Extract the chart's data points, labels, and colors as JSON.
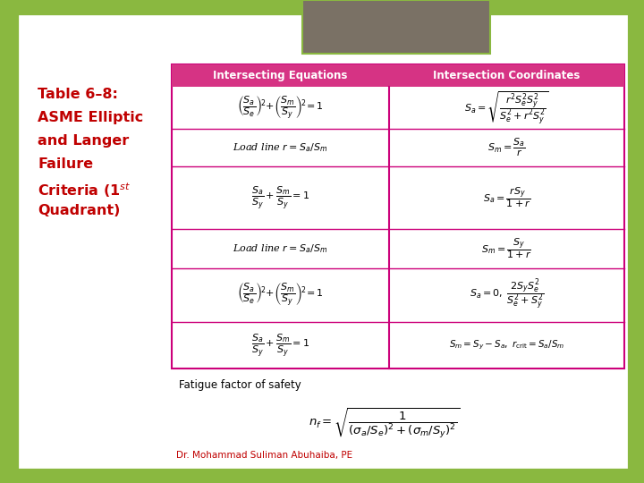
{
  "bg_color": "#8ab840",
  "slide_bg": "#ffffff",
  "header_color": "#d63384",
  "header_text_color": "#ffffff",
  "title_text_color": "#c00000",
  "col1_header": "Intersecting Equations",
  "col2_header": "Intersection Coordinates",
  "footer_text": "Dr. Mohammad Suliman Abuhaiba, PE",
  "fatigue_label": "Fatigue factor of safety",
  "gray_box_color": "#7a7165",
  "table_line_color": "#cc007a",
  "slide_border_color": "#8ab840",
  "figsize": [
    7.2,
    5.4
  ],
  "dpi": 100
}
